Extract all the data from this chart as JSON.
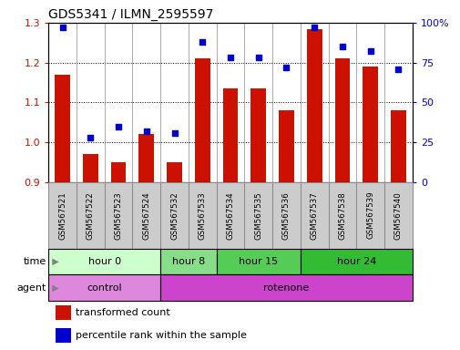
{
  "title": "GDS5341 / ILMN_2595597",
  "samples": [
    "GSM567521",
    "GSM567522",
    "GSM567523",
    "GSM567524",
    "GSM567532",
    "GSM567533",
    "GSM567534",
    "GSM567535",
    "GSM567536",
    "GSM567537",
    "GSM567538",
    "GSM567539",
    "GSM567540"
  ],
  "transformed_count": [
    1.17,
    0.97,
    0.95,
    1.02,
    0.95,
    1.21,
    1.135,
    1.135,
    1.08,
    1.285,
    1.21,
    1.19,
    1.08
  ],
  "percentile_rank": [
    97,
    28,
    35,
    32,
    31,
    88,
    78,
    78,
    72,
    97,
    85,
    82,
    71
  ],
  "ylim_left": [
    0.9,
    1.3
  ],
  "ylim_right": [
    0,
    100
  ],
  "yticks_left": [
    0.9,
    1.0,
    1.1,
    1.2,
    1.3
  ],
  "yticks_right": [
    0,
    25,
    50,
    75,
    100
  ],
  "bar_color": "#cc1100",
  "dot_color": "#0000cc",
  "bar_width": 0.55,
  "time_groups": [
    {
      "label": "hour 0",
      "start": 0,
      "end": 4,
      "color": "#ccffcc"
    },
    {
      "label": "hour 8",
      "start": 4,
      "end": 6,
      "color": "#88dd88"
    },
    {
      "label": "hour 15",
      "start": 6,
      "end": 9,
      "color": "#55cc55"
    },
    {
      "label": "hour 24",
      "start": 9,
      "end": 13,
      "color": "#33bb33"
    }
  ],
  "agent_groups": [
    {
      "label": "control",
      "start": 0,
      "end": 4,
      "color": "#dd88dd"
    },
    {
      "label": "rotenone",
      "start": 4,
      "end": 13,
      "color": "#cc44cc"
    }
  ],
  "legend_bar_label": "transformed count",
  "legend_dot_label": "percentile rank within the sample",
  "time_label": "time",
  "agent_label": "agent",
  "sample_box_color": "#cccccc",
  "sample_box_edge": "#888888"
}
